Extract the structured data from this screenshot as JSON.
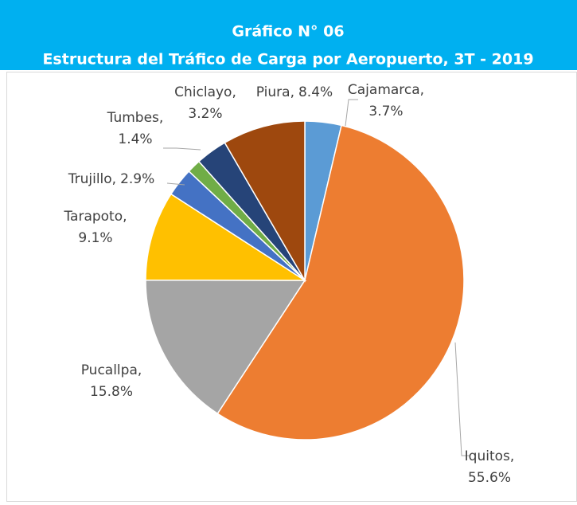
{
  "chart_data": {
    "type": "pie",
    "title": "Gráfico N° 06",
    "subtitle": "Estructura del Tráfico de Carga por Aeropuerto, 3T - 2019",
    "categories": [
      "Cajamarca,",
      "Iquitos,",
      "Pucallpa,",
      "Tarapoto,",
      "Trujillo,",
      "Tumbes,",
      "Chiclayo,",
      "Piura,"
    ],
    "values": [
      3.7,
      55.6,
      15.8,
      9.1,
      2.9,
      1.4,
      3.2,
      8.4
    ],
    "value_labels": [
      "3.7%",
      "55.6%",
      "15.8%",
      "9.1%",
      "2.9%",
      "1.4%",
      "3.2%",
      "8.4%"
    ],
    "colors": [
      "#5b9bd5",
      "#ed7d31",
      "#a5a5a5",
      "#ffc000",
      "#4472c4",
      "#70ad47",
      "#264478",
      "#9e480e"
    ]
  }
}
